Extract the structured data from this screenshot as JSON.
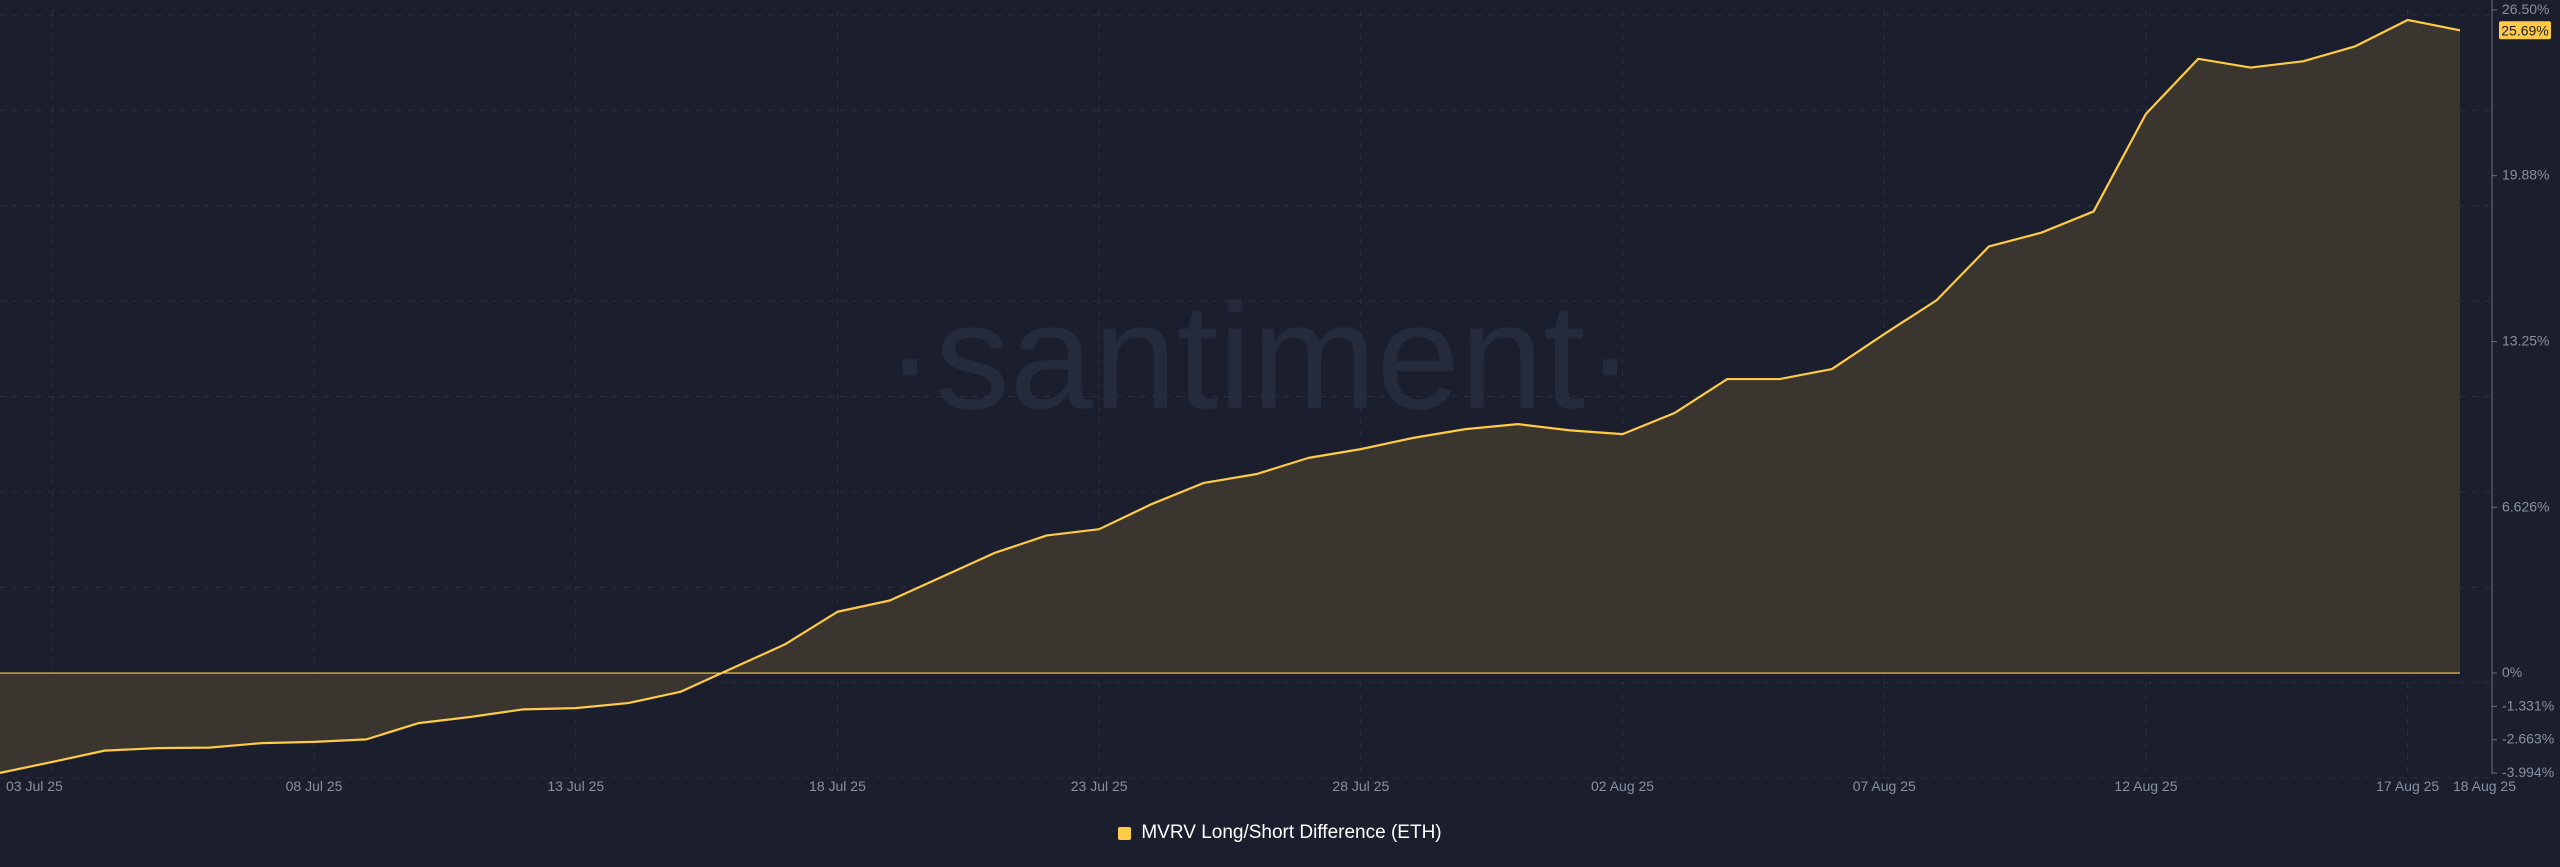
{
  "watermark": "·santiment·",
  "legend": {
    "label": "MVRV Long/Short Difference (ETH)"
  },
  "colors": {
    "background": "#1a1e2d",
    "line": "#ffcb47",
    "area_fill": "#3b352f",
    "grid": "#2a3042",
    "tick_text": "#8a90a0",
    "zero_line": "#ffcb47",
    "badge_bg": "#ffcb47",
    "badge_text": "#1a1e2d"
  },
  "chart_data": {
    "type": "area",
    "title": "",
    "xlabel": "",
    "ylabel": "",
    "grid": true,
    "legend_position": "bottom-center",
    "x_tick_labels": [
      "03 Jul 25",
      "08 Jul 25",
      "13 Jul 25",
      "18 Jul 25",
      "23 Jul 25",
      "28 Jul 25",
      "02 Aug 25",
      "07 Aug 25",
      "12 Aug 25",
      "17 Aug 25",
      "18 Aug 25"
    ],
    "y_tick_labels": [
      "26.50%",
      "19.88%",
      "13.25%",
      "6.626%",
      "0%",
      "-1.331%",
      "-2.663%",
      "-3.994%"
    ],
    "ylim": [
      -3.994,
      26.5
    ],
    "last_value_label": "25.69%",
    "series": [
      {
        "name": "MVRV Long/Short Difference (ETH)",
        "x": [
          "2025-07-02",
          "2025-07-03",
          "2025-07-04",
          "2025-07-05",
          "2025-07-06",
          "2025-07-07",
          "2025-07-08",
          "2025-07-09",
          "2025-07-10",
          "2025-07-11",
          "2025-07-12",
          "2025-07-13",
          "2025-07-14",
          "2025-07-15",
          "2025-07-16",
          "2025-07-17",
          "2025-07-18",
          "2025-07-19",
          "2025-07-20",
          "2025-07-21",
          "2025-07-22",
          "2025-07-23",
          "2025-07-24",
          "2025-07-25",
          "2025-07-26",
          "2025-07-27",
          "2025-07-28",
          "2025-07-29",
          "2025-07-30",
          "2025-07-31",
          "2025-08-01",
          "2025-08-02",
          "2025-08-03",
          "2025-08-04",
          "2025-08-05",
          "2025-08-06",
          "2025-08-07",
          "2025-08-08",
          "2025-08-09",
          "2025-08-10",
          "2025-08-11",
          "2025-08-12",
          "2025-08-13",
          "2025-08-14",
          "2025-08-15",
          "2025-08-16",
          "2025-08-17",
          "2025-08-18"
        ],
        "values": [
          -3.99,
          -3.55,
          -3.1,
          -3.0,
          -2.98,
          -2.8,
          -2.75,
          -2.65,
          -2.0,
          -1.75,
          -1.45,
          -1.4,
          -1.2,
          -0.75,
          0.2,
          1.15,
          2.45,
          2.9,
          3.85,
          4.8,
          5.5,
          5.75,
          6.75,
          7.6,
          7.95,
          8.6,
          8.95,
          9.4,
          9.75,
          9.95,
          9.7,
          9.55,
          10.4,
          11.75,
          11.75,
          12.15,
          13.55,
          14.9,
          17.05,
          17.6,
          18.45,
          22.35,
          24.55,
          24.2,
          24.45,
          25.05,
          26.1,
          25.69
        ]
      }
    ]
  }
}
